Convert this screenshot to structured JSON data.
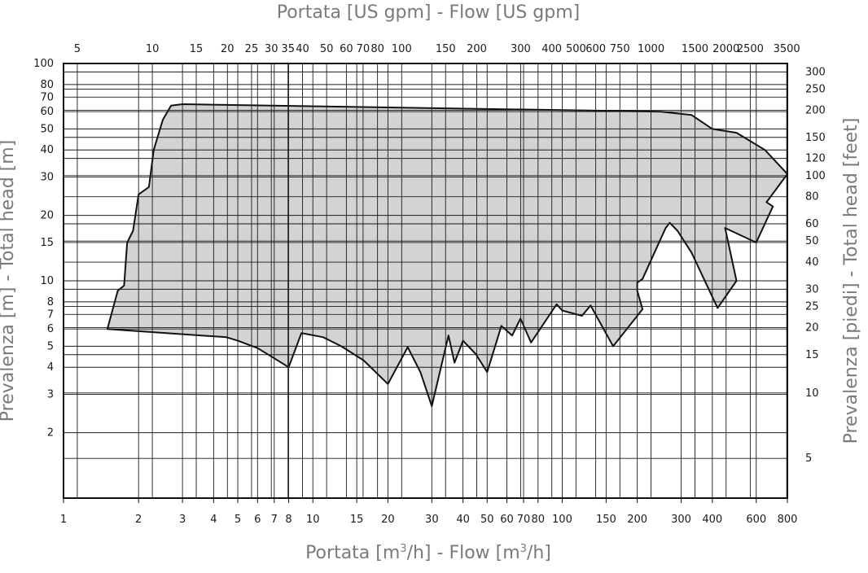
{
  "chart_data": {
    "type": "area",
    "title": "",
    "top_axis_title": "Portata [US gpm] - Flow [US gpm]",
    "bottom_axis_title": {
      "main": "Portata [m",
      "sup": "3",
      "mid": "/h] - Flow [m",
      "end": "/h]"
    },
    "left_axis_title": "Prevalenza [m] - Total head [m]",
    "right_axis_title": "Prevalenza [piedi] - Total head [feet]",
    "x_scale": "log",
    "y_scale": "log",
    "xlim": [
      1,
      800
    ],
    "ylim": [
      1,
      100
    ],
    "grid": true,
    "x_ticks": [
      1,
      2,
      3,
      4,
      5,
      6,
      7,
      8,
      10,
      15,
      20,
      30,
      40,
      50,
      60,
      70,
      80,
      100,
      150,
      200,
      300,
      400,
      600,
      800
    ],
    "x_tick_labels": [
      "1",
      "2",
      "3",
      "4",
      "5",
      "6",
      "7",
      "8",
      "10",
      "15",
      "20",
      "30",
      "40",
      "50",
      "60",
      "70",
      "80",
      "100",
      "150",
      "200",
      "300",
      "400",
      "600",
      "800"
    ],
    "y_ticks": [
      2,
      3,
      4,
      5,
      6,
      7,
      8,
      10,
      15,
      20,
      30,
      40,
      50,
      60,
      70,
      80,
      100
    ],
    "y_tick_labels": [
      "2",
      "3",
      "4",
      "5",
      "6",
      "7",
      "8",
      "10",
      "15",
      "20",
      "30",
      "40",
      "50",
      "60",
      "70",
      "80",
      "100"
    ],
    "top_ticks_gpm": [
      5,
      10,
      15,
      20,
      25,
      30,
      35,
      40,
      50,
      60,
      70,
      80,
      100,
      150,
      200,
      300,
      400,
      500,
      600,
      750,
      1000,
      1500,
      2000,
      2500,
      3500
    ],
    "top_tick_labels": [
      "5",
      "10",
      "15",
      "20",
      "25",
      "30",
      "35",
      "40",
      "50",
      "60",
      "70",
      "80",
      "100",
      "150",
      "200",
      "300",
      "400",
      "500",
      "600",
      "750",
      "1000",
      "1500",
      "2000",
      "2500",
      "3500"
    ],
    "right_ticks_feet": [
      5,
      10,
      15,
      20,
      25,
      30,
      40,
      50,
      60,
      80,
      100,
      120,
      150,
      200,
      250,
      300
    ],
    "right_tick_labels": [
      "5",
      "10",
      "15",
      "20",
      "25",
      "30",
      "40",
      "50",
      "60",
      "80",
      "100",
      "120",
      "150",
      "200",
      "250",
      "300"
    ],
    "envelope": {
      "name": "",
      "fill": "#d3d3d3",
      "stroke": "#111111",
      "points": [
        [
          1.5,
          6.0
        ],
        [
          4.5,
          5.5
        ],
        [
          5.0,
          5.3
        ],
        [
          6.0,
          4.9
        ],
        [
          7.0,
          4.4
        ],
        [
          8.0,
          4.0
        ],
        [
          9.0,
          5.75
        ],
        [
          11.0,
          5.5
        ],
        [
          13.0,
          5.0
        ],
        [
          16.0,
          4.3
        ],
        [
          20.0,
          3.35
        ],
        [
          24.0,
          4.95
        ],
        [
          27.0,
          3.8
        ],
        [
          30.0,
          2.65
        ],
        [
          35.0,
          5.6
        ],
        [
          37.0,
          4.2
        ],
        [
          40.0,
          5.3
        ],
        [
          45.0,
          4.6
        ],
        [
          50.0,
          3.8
        ],
        [
          57.0,
          6.2
        ],
        [
          63.0,
          5.6
        ],
        [
          68.0,
          6.7
        ],
        [
          75.0,
          5.2
        ],
        [
          95.0,
          7.8
        ],
        [
          100.0,
          7.3
        ],
        [
          120.0,
          6.9
        ],
        [
          130.0,
          7.7
        ],
        [
          160.0,
          5.0
        ],
        [
          210.0,
          7.4
        ],
        [
          200.0,
          9.0
        ],
        [
          200.0,
          9.8
        ],
        [
          210.0,
          10.2
        ],
        [
          260.0,
          17.5
        ],
        [
          270.0,
          18.5
        ],
        [
          290.0,
          17.0
        ],
        [
          330.0,
          13.5
        ],
        [
          420.0,
          7.5
        ],
        [
          500.0,
          10.0
        ],
        [
          450.0,
          17.5
        ],
        [
          600.0,
          15.0
        ],
        [
          700.0,
          22.0
        ],
        [
          660.0,
          23.0
        ],
        [
          800.0,
          31.0
        ],
        [
          650.0,
          40.0
        ],
        [
          500.0,
          48.0
        ],
        [
          400.0,
          50.0
        ],
        [
          330.0,
          58.0
        ],
        [
          250.0,
          60.0
        ],
        [
          3.0,
          65.0
        ],
        [
          2.7,
          64.0
        ],
        [
          2.5,
          55.0
        ],
        [
          2.3,
          40.0
        ],
        [
          2.2,
          27.0
        ],
        [
          2.0,
          25.0
        ],
        [
          1.9,
          17.0
        ],
        [
          1.8,
          15.0
        ],
        [
          1.75,
          9.5
        ],
        [
          1.65,
          9.0
        ],
        [
          1.5,
          6.0
        ]
      ]
    }
  }
}
